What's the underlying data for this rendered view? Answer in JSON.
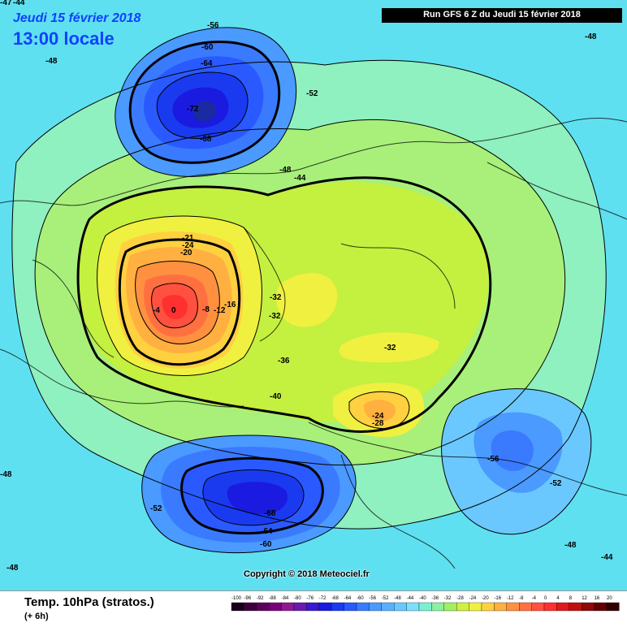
{
  "header": {
    "date": "Jeudi 15 février 2018",
    "local_time": "13:00 locale",
    "run": "Run GFS 6 Z du Jeudi 15 février 2018"
  },
  "copyright": "Copyright © 2018 Meteociel.fr",
  "footer": {
    "variable": "Temp. 10hPa (stratos.)",
    "step": "(+ 6h)"
  },
  "map": {
    "contour_labels": [
      {
        "text": "-56",
        "role": "north-pacific-low"
      },
      {
        "text": "-60",
        "role": "north-pacific-low"
      },
      {
        "text": "-64",
        "role": "north-pacific-low"
      },
      {
        "text": "-72",
        "role": "north-pacific-low-center"
      },
      {
        "text": "-68",
        "role": "north-pacific-low"
      },
      {
        "text": "-48",
        "role": "top-left"
      },
      {
        "text": "-48",
        "role": "top-right"
      },
      {
        "text": "-52",
        "role": "north-central"
      },
      {
        "text": "-48",
        "role": "alaska"
      },
      {
        "text": "-44",
        "role": "alaska"
      },
      {
        "text": "-21",
        "role": "warm-core"
      },
      {
        "text": "-24",
        "role": "warm-core"
      },
      {
        "text": "-20",
        "role": "warm-core"
      },
      {
        "text": "-4",
        "role": "warm-core"
      },
      {
        "text": "0",
        "role": "warm-core-center"
      },
      {
        "text": "-8",
        "role": "warm-core"
      },
      {
        "text": "-12",
        "role": "warm-core"
      },
      {
        "text": "-16",
        "role": "warm-core"
      },
      {
        "text": "-32",
        "role": "greenland"
      },
      {
        "text": "-32",
        "role": "greenland"
      },
      {
        "text": "-36",
        "role": "greenland"
      },
      {
        "text": "-32",
        "role": "siberia"
      },
      {
        "text": "-40",
        "role": "europe"
      },
      {
        "text": "-24",
        "role": "secondary-warm"
      },
      {
        "text": "-28",
        "role": "secondary-warm"
      },
      {
        "text": "-56",
        "role": "south-east-low"
      },
      {
        "text": "-52",
        "role": "south-east-low"
      },
      {
        "text": "-68",
        "role": "south-low-center"
      },
      {
        "text": "-64",
        "role": "south-low"
      },
      {
        "text": "-60",
        "role": "south-low"
      },
      {
        "text": "-52",
        "role": "south-west"
      },
      {
        "text": "-48",
        "role": "south-west"
      },
      {
        "text": "-48",
        "role": "left-edge"
      },
      {
        "text": "-48",
        "role": "south-east"
      },
      {
        "text": "-44",
        "role": "south-east"
      },
      {
        "text": "-47",
        "role": "corner"
      },
      {
        "text": "-44",
        "role": "corner"
      }
    ]
  },
  "legend": {
    "ticks": [
      "-100",
      "-96",
      "-92",
      "-88",
      "-84",
      "-80",
      "-76",
      "-72",
      "-68",
      "-64",
      "-60",
      "-56",
      "-52",
      "-48",
      "-44",
      "-40",
      "-36",
      "-32",
      "-28",
      "-24",
      "-20",
      "-16",
      "-12",
      "-8",
      "-4",
      "0",
      "4",
      "8",
      "12",
      "16",
      "20"
    ],
    "colors": [
      "#1a001a",
      "#3d003d",
      "#5a005a",
      "#7a007a",
      "#8f1a8f",
      "#6a1ab0",
      "#3a1ad0",
      "#1a1ae0",
      "#1a3af0",
      "#2a5aff",
      "#3a7aff",
      "#4a9aff",
      "#5ab0ff",
      "#6ac8ff",
      "#7ae0ff",
      "#7af0d0",
      "#8af0a0",
      "#a0f060",
      "#d0f040",
      "#f0f040",
      "#ffd040",
      "#ffb040",
      "#ff9040",
      "#ff7040",
      "#ff5040",
      "#ff3030",
      "#e01a1a",
      "#c01010",
      "#900808",
      "#600000",
      "#300000"
    ]
  }
}
